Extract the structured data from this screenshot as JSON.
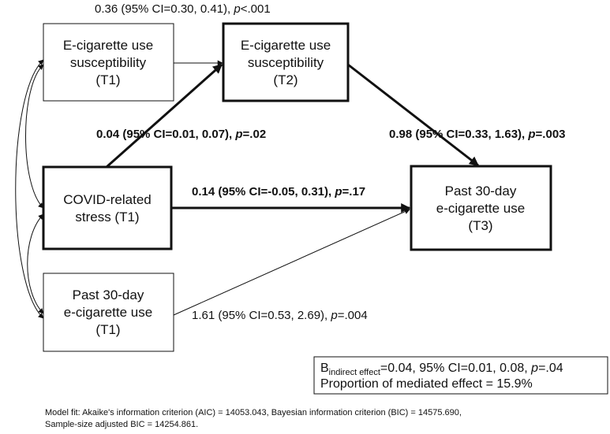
{
  "nodes": [
    {
      "lines": [
        "E-cigarette use",
        "susceptibility",
        "(T1)"
      ]
    },
    {
      "lines": [
        "E-cigarette use",
        "susceptibility",
        "(T2)"
      ]
    },
    {
      "lines": [
        "COVID-related",
        "stress (T1)"
      ]
    },
    {
      "lines": [
        "Past 30-day",
        "e-cigarette use",
        "(T3)"
      ]
    },
    {
      "lines": [
        "Past 30-day",
        "e-cigarette use",
        "(T1)"
      ]
    }
  ],
  "edges": [
    {
      "estimate": "0.36 (95% CI=0.30, 0.41), ",
      "p": "p",
      "p_value": "<.001"
    },
    {
      "estimate": "0.04 (95% CI=0.01, 0.07), ",
      "p": "p",
      "p_value": "=.02"
    },
    {
      "estimate": "0.98 (95% CI=0.33, 1.63), ",
      "p": "p",
      "p_value": "=.003"
    },
    {
      "estimate": "0.14 (95% CI=-0.05, 0.31), ",
      "p": "p",
      "p_value": "=.17"
    },
    {
      "estimate": "1.61 (95% CI=0.53, 2.69), ",
      "p": "p",
      "p_value": "=.004"
    }
  ],
  "indirect": {
    "symbol": "B",
    "subscript": "indirect effect",
    "estimate": "=0.04, 95% CI=0.01, 0.08, ",
    "p": "p",
    "p_value": "=.04",
    "proportion": "Proportion of mediated effect = 15.9%"
  },
  "footnote": [
    "Model fit: Akaike's information criterion (AIC) = 14053.043, Bayesian information criterion (BIC) = 14575.690,",
    "Sample-size adjusted BIC = 14254.861."
  ]
}
